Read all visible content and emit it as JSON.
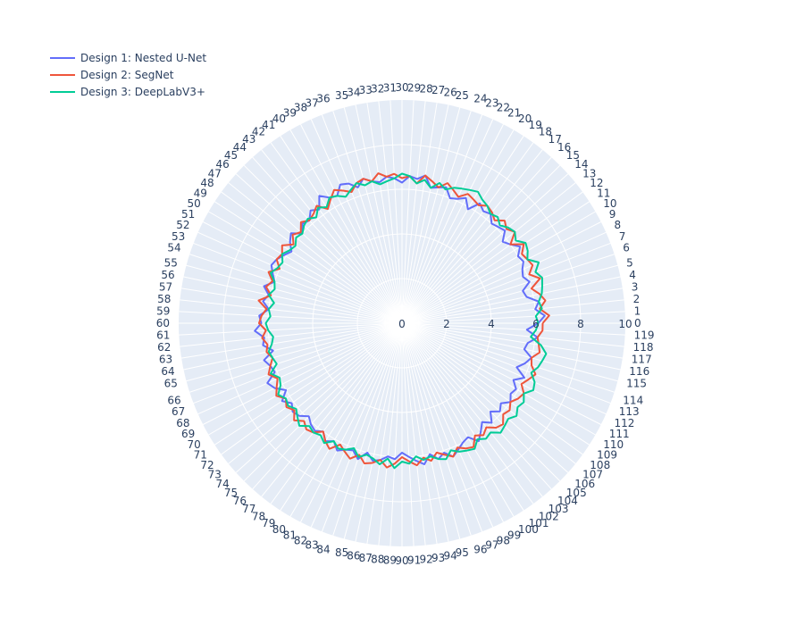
{
  "chart_data": {
    "type": "polar-line",
    "radial_range": [
      0,
      10
    ],
    "radial_ticks": [
      0,
      2,
      4,
      6,
      8,
      10
    ],
    "angular_ticks": [
      0,
      1,
      2,
      3,
      4,
      5,
      6,
      7,
      8,
      9,
      10,
      11,
      12,
      13,
      14,
      15,
      16,
      17,
      18,
      19,
      20,
      21,
      22,
      23,
      24,
      25,
      26,
      27,
      28,
      29,
      30,
      31,
      32,
      33,
      34,
      35,
      36,
      37,
      38,
      39,
      40,
      41,
      42,
      43,
      44,
      45,
      46,
      47,
      48,
      49,
      50,
      51,
      52,
      53,
      54,
      55,
      56,
      57,
      58,
      59,
      60,
      61,
      62,
      63,
      64,
      65,
      66,
      67,
      68,
      69,
      70,
      71,
      72,
      73,
      74,
      75,
      76,
      77,
      78,
      79,
      80,
      81,
      82,
      83,
      84,
      85,
      86,
      87,
      88,
      89,
      90,
      91,
      92,
      93,
      94,
      95,
      96,
      97,
      98,
      99,
      100,
      101,
      102,
      103,
      104,
      105,
      106,
      107,
      108,
      109,
      110,
      111,
      112,
      113,
      114,
      115,
      116,
      117,
      118,
      119
    ],
    "angular_period": 120,
    "legend_position": "top-left",
    "series": [
      {
        "name": "Design 1: Nested U-Net",
        "color": "#636efa",
        "values": [
          6.1,
          6.4,
          6.0,
          6.2,
          5.7,
          5.6,
          6.0,
          5.8,
          5.9,
          6.1,
          6.0,
          6.3,
          6.0,
          5.8,
          6.2,
          6.1,
          6.0,
          6.3,
          6.2,
          6.4,
          5.9,
          6.3,
          6.1,
          6.0,
          6.4,
          6.3,
          6.2,
          6.7,
          6.5,
          6.6,
          6.3,
          6.5,
          6.6,
          6.4,
          6.5,
          6.7,
          6.4,
          6.7,
          6.8,
          6.4,
          6.5,
          6.8,
          6.3,
          6.5,
          6.2,
          6.3,
          6.0,
          6.4,
          6.2,
          5.9,
          6.1,
          6.3,
          6.4,
          6.2,
          6.0,
          6.4,
          6.1,
          6.3,
          6.0,
          6.4,
          6.3,
          6.6,
          6.2,
          6.3,
          5.9,
          6.4,
          6.2,
          6.1,
          6.6,
          6.4,
          6.0,
          6.4,
          6.1,
          6.3,
          6.2,
          5.9,
          6.1,
          6.2,
          6.0,
          6.3,
          6.1,
          6.4,
          6.2,
          6.1,
          6.4,
          6.0,
          6.3,
          6.2,
          6.0,
          6.1,
          5.8,
          6.0,
          6.2,
          6.4,
          6.0,
          6.3,
          6.1,
          6.4,
          6.2,
          6.0,
          5.9,
          6.3,
          6.0,
          5.7,
          6.0,
          5.6,
          5.9,
          5.7,
          6.0,
          5.8,
          5.9,
          5.6,
          6.0,
          5.5,
          5.8,
          6.0,
          5.6,
          5.7,
          6.1,
          5.6
        ]
      },
      {
        "name": "Design 2: SegNet",
        "color": "#ef553b",
        "values": [
          6.3,
          6.6,
          6.2,
          6.5,
          6.3,
          6.0,
          6.5,
          6.1,
          6.4,
          6.3,
          6.2,
          6.5,
          6.0,
          6.5,
          6.3,
          6.5,
          6.2,
          6.4,
          6.5,
          6.3,
          6.4,
          6.5,
          6.2,
          6.4,
          6.6,
          6.3,
          6.5,
          6.7,
          6.3,
          6.6,
          6.5,
          6.7,
          6.6,
          6.8,
          6.5,
          6.7,
          6.6,
          6.3,
          6.5,
          6.7,
          6.4,
          6.1,
          6.5,
          6.3,
          6.2,
          6.4,
          6.1,
          6.3,
          6.0,
          6.4,
          6.2,
          6.3,
          6.0,
          6.4,
          6.1,
          6.3,
          6.0,
          6.5,
          6.1,
          6.3,
          6.4,
          6.1,
          6.3,
          6.1,
          6.2,
          6.0,
          6.2,
          6.4,
          6.1,
          6.3,
          6.5,
          6.2,
          6.4,
          6.2,
          6.5,
          6.2,
          6.4,
          6.3,
          6.0,
          6.3,
          6.5,
          6.1,
          6.3,
          6.5,
          6.2,
          6.5,
          6.4,
          6.2,
          6.5,
          6.3,
          6.0,
          6.2,
          6.4,
          6.1,
          6.3,
          6.0,
          6.2,
          6.4,
          6.1,
          6.3,
          6.4,
          6.0,
          6.2,
          6.0,
          6.3,
          6.4,
          6.1,
          6.2,
          6.0,
          6.2,
          6.3,
          6.0,
          6.2,
          6.4,
          6.1,
          6.0,
          6.3,
          6.2,
          6.1,
          6.3
        ]
      },
      {
        "name": "Design 3: DeepLabV3+",
        "color": "#00cc96",
        "values": [
          6.1,
          6.0,
          6.3,
          6.2,
          6.4,
          6.5,
          6.6,
          6.4,
          6.7,
          6.3,
          6.5,
          6.6,
          6.3,
          6.5,
          6.4,
          6.2,
          6.4,
          6.3,
          6.5,
          6.6,
          6.8,
          6.7,
          6.6,
          6.5,
          6.3,
          6.5,
          6.2,
          6.5,
          6.3,
          6.6,
          6.7,
          6.5,
          6.4,
          6.3,
          6.5,
          6.4,
          6.6,
          6.4,
          6.2,
          6.4,
          6.5,
          6.2,
          6.4,
          6.1,
          6.3,
          6.2,
          6.0,
          6.1,
          5.9,
          6.0,
          6.2,
          6.0,
          6.1,
          6.3,
          6.0,
          5.9,
          6.1,
          5.8,
          6.0,
          5.9,
          6.1,
          6.0,
          5.8,
          5.9,
          6.1,
          6.0,
          5.9,
          6.3,
          6.0,
          6.1,
          6.4,
          6.2,
          6.3,
          6.1,
          6.3,
          6.5,
          6.2,
          6.3,
          6.2,
          6.4,
          6.1,
          6.3,
          6.2,
          6.0,
          6.3,
          6.1,
          6.2,
          6.4,
          6.1,
          6.5,
          6.2,
          6.3,
          6.0,
          6.2,
          6.1,
          6.3,
          6.4,
          6.1,
          6.3,
          6.4,
          6.5,
          6.2,
          6.4,
          6.3,
          6.6,
          6.5,
          6.4,
          6.6,
          6.4,
          6.5,
          6.3,
          6.6,
          6.5,
          6.2,
          6.4,
          6.5,
          6.6,
          6.3,
          5.8,
          6.0
        ]
      }
    ]
  }
}
